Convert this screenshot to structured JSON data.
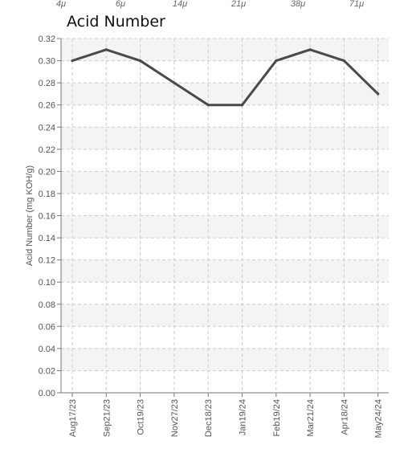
{
  "top_labels": [
    "4μ",
    "6μ",
    "14μ",
    "21μ",
    "38μ",
    "71μ"
  ],
  "chart_data": {
    "type": "line",
    "title": "Acid Number",
    "ylabel": "Acid Number (mg KOH/g)",
    "xlabel": "",
    "categories": [
      "Aug17/23",
      "Sep21/23",
      "Oct19/23",
      "Nov27/23",
      "Dec18/23",
      "Jan19/24",
      "Feb19/24",
      "Mar21/24",
      "Apr18/24",
      "May24/24"
    ],
    "series": [
      {
        "values": [
          0.3,
          0.31,
          0.3,
          0.28,
          0.26,
          0.26,
          0.3,
          0.31,
          0.3,
          0.27
        ]
      }
    ],
    "ylim": [
      0,
      0.32
    ],
    "ytick_labels": [
      "0.00",
      "0.02",
      "0.04",
      "0.06",
      "0.08",
      "0.10",
      "0.12",
      "0.14",
      "0.16",
      "0.18",
      "0.20",
      "0.22",
      "0.24",
      "0.26",
      "0.28",
      "0.30",
      "0.32"
    ],
    "grid": true,
    "colors": {
      "line": "#4a4a4a",
      "band": "#f4f4f4",
      "grid": "#cccccc",
      "axis": "#777777"
    }
  }
}
